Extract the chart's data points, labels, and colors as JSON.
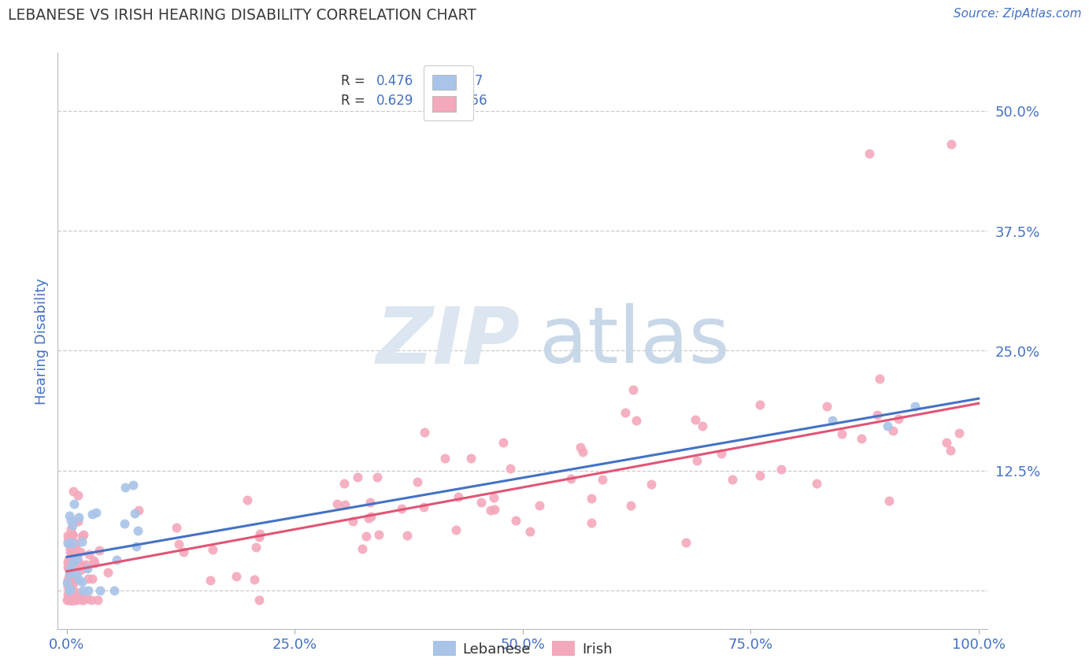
{
  "title": "LEBANESE VS IRISH HEARING DISABILITY CORRELATION CHART",
  "source_text": "Source: ZipAtlas.com",
  "ylabel": "Hearing Disability",
  "xlim": [
    -0.01,
    1.01
  ],
  "ylim": [
    -0.04,
    0.56
  ],
  "yticks": [
    0.0,
    0.125,
    0.25,
    0.375,
    0.5
  ],
  "ytick_labels": [
    "",
    "12.5%",
    "25.0%",
    "37.5%",
    "50.0%"
  ],
  "xticks": [
    0.0,
    0.25,
    0.5,
    0.75,
    1.0
  ],
  "xtick_labels": [
    "0.0%",
    "25.0%",
    "50.0%",
    "75.0%",
    "100.0%"
  ],
  "lebanese_R": 0.476,
  "lebanese_N": 37,
  "irish_R": 0.629,
  "irish_N": 156,
  "lebanese_color": "#a8c4e8",
  "irish_color": "#f4a8bc",
  "lebanese_line_color": "#4472c4",
  "irish_line_color": "#e05575",
  "title_color": "#3a3a3a",
  "axis_label_color": "#4472c4",
  "tick_label_color": "#4472c4",
  "background_color": "#ffffff",
  "grid_color": "#cccccc",
  "leb_intercept": 0.035,
  "leb_slope": 0.165,
  "irish_intercept": 0.02,
  "irish_slope": 0.175
}
